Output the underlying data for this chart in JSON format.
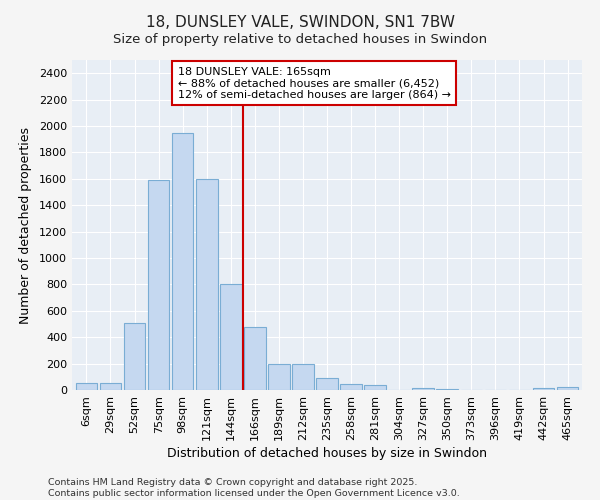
{
  "title": "18, DUNSLEY VALE, SWINDON, SN1 7BW",
  "subtitle": "Size of property relative to detached houses in Swindon",
  "xlabel": "Distribution of detached houses by size in Swindon",
  "ylabel": "Number of detached properties",
  "footnote": "Contains HM Land Registry data © Crown copyright and database right 2025.\nContains public sector information licensed under the Open Government Licence v3.0.",
  "bar_labels": [
    "6sqm",
    "29sqm",
    "52sqm",
    "75sqm",
    "98sqm",
    "121sqm",
    "144sqm",
    "166sqm",
    "189sqm",
    "212sqm",
    "235sqm",
    "258sqm",
    "281sqm",
    "304sqm",
    "327sqm",
    "350sqm",
    "373sqm",
    "396sqm",
    "419sqm",
    "442sqm",
    "465sqm"
  ],
  "bar_values": [
    50,
    55,
    510,
    1590,
    1950,
    1600,
    800,
    475,
    195,
    200,
    90,
    45,
    35,
    0,
    15,
    10,
    0,
    0,
    0,
    15,
    25
  ],
  "bar_color": "#c5d8f0",
  "bar_edge_color": "#7aadd4",
  "bar_linewidth": 0.8,
  "vline_x": 6.5,
  "vline_color": "#cc0000",
  "annotation_line1": "18 DUNSLEY VALE: 165sqm",
  "annotation_line2": "← 88% of detached houses are smaller (6,452)",
  "annotation_line3": "12% of semi-detached houses are larger (864) →",
  "annotation_box_color": "#ffffff",
  "annotation_box_edge": "#cc0000",
  "ylim": [
    0,
    2500
  ],
  "yticks": [
    0,
    200,
    400,
    600,
    800,
    1000,
    1200,
    1400,
    1600,
    1800,
    2000,
    2200,
    2400
  ],
  "bg_color": "#e8eef5",
  "grid_color": "#ffffff",
  "title_fontsize": 11,
  "subtitle_fontsize": 9.5,
  "axis_label_fontsize": 9,
  "tick_fontsize": 8,
  "footnote_fontsize": 6.8,
  "fig_bg": "#f5f5f5"
}
